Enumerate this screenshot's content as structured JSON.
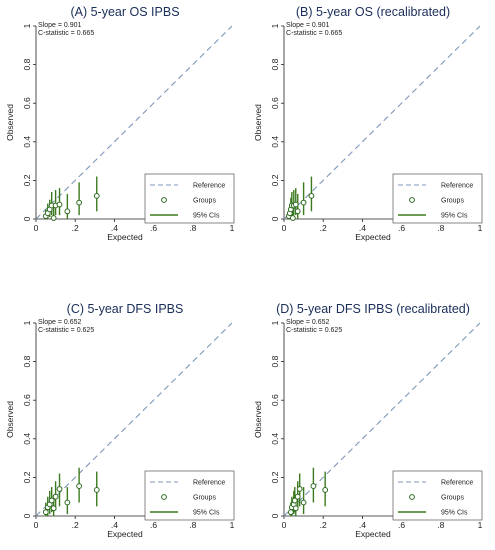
{
  "colors": {
    "reference": "#7d97b8",
    "groups": "#2e6b1f",
    "ci": "#3b7a1e",
    "title": "#1a2e5a"
  },
  "chart_data": [
    {
      "type": "scatter",
      "title": "(A) 5-year OS IPBS",
      "xlabel": "Expected",
      "ylabel": "Observed",
      "xlim": [
        0,
        1
      ],
      "ylim": [
        0,
        1
      ],
      "xticks": [
        "0",
        ".2",
        ".4",
        ".6",
        ".8",
        "1"
      ],
      "yticks": [
        "0",
        "0.2",
        "0.4",
        "0.6",
        "0.8",
        "1"
      ],
      "stats": [
        "Slope = 0.901",
        "C-statistic = 0.665"
      ],
      "legend": [
        "Reference",
        "Groups",
        "95% CIs"
      ],
      "legend_position": "bottom-right",
      "points": [
        {
          "x": 0.05,
          "y": 0.015,
          "lo": 0.0,
          "hi": 0.05
        },
        {
          "x": 0.06,
          "y": 0.03,
          "lo": 0.0,
          "hi": 0.08
        },
        {
          "x": 0.07,
          "y": 0.05,
          "lo": 0.01,
          "hi": 0.1
        },
        {
          "x": 0.08,
          "y": 0.07,
          "lo": 0.02,
          "hi": 0.14
        },
        {
          "x": 0.09,
          "y": 0.005,
          "lo": 0.0,
          "hi": 0.07
        },
        {
          "x": 0.1,
          "y": 0.07,
          "lo": 0.02,
          "hi": 0.15
        },
        {
          "x": 0.12,
          "y": 0.075,
          "lo": 0.02,
          "hi": 0.16
        },
        {
          "x": 0.16,
          "y": 0.04,
          "lo": 0.0,
          "hi": 0.13
        },
        {
          "x": 0.22,
          "y": 0.085,
          "lo": 0.02,
          "hi": 0.19
        },
        {
          "x": 0.31,
          "y": 0.12,
          "lo": 0.04,
          "hi": 0.22
        }
      ]
    },
    {
      "type": "scatter",
      "title": "(B) 5-year OS (recalibrated)",
      "xlabel": "Expected",
      "ylabel": "Observed",
      "xlim": [
        0,
        1
      ],
      "ylim": [
        0,
        1
      ],
      "xticks": [
        "0",
        ".2",
        ".4",
        ".6",
        ".8",
        "1"
      ],
      "yticks": [
        "0",
        "0.2",
        "0.4",
        "0.6",
        "0.8",
        "1"
      ],
      "stats": [
        "Slope = 0.901",
        "C-statistic = 0.665"
      ],
      "legend": [
        "Reference",
        "Groups",
        "95% CIs"
      ],
      "legend_position": "bottom-right",
      "points": [
        {
          "x": 0.025,
          "y": 0.015,
          "lo": 0.0,
          "hi": 0.05
        },
        {
          "x": 0.03,
          "y": 0.03,
          "lo": 0.0,
          "hi": 0.08
        },
        {
          "x": 0.035,
          "y": 0.05,
          "lo": 0.01,
          "hi": 0.11
        },
        {
          "x": 0.04,
          "y": 0.07,
          "lo": 0.02,
          "hi": 0.14
        },
        {
          "x": 0.045,
          "y": 0.005,
          "lo": 0.0,
          "hi": 0.07
        },
        {
          "x": 0.05,
          "y": 0.07,
          "lo": 0.02,
          "hi": 0.15
        },
        {
          "x": 0.06,
          "y": 0.075,
          "lo": 0.02,
          "hi": 0.16
        },
        {
          "x": 0.07,
          "y": 0.04,
          "lo": 0.0,
          "hi": 0.13
        },
        {
          "x": 0.1,
          "y": 0.085,
          "lo": 0.02,
          "hi": 0.19
        },
        {
          "x": 0.14,
          "y": 0.12,
          "lo": 0.04,
          "hi": 0.22
        }
      ]
    },
    {
      "type": "scatter",
      "title": "(C) 5-year DFS IPBS",
      "xlabel": "Expected",
      "ylabel": "Observed",
      "xlim": [
        0,
        1
      ],
      "ylim": [
        0,
        1
      ],
      "xticks": [
        "0",
        ".2",
        ".4",
        ".6",
        ".8",
        "1"
      ],
      "yticks": [
        "0",
        "0.2",
        "0.4",
        "0.6",
        "0.8",
        "1"
      ],
      "stats": [
        "Slope = 0.652",
        "C-statistic = 0.625"
      ],
      "legend": [
        "Reference",
        "Groups",
        "95% CIs"
      ],
      "legend_position": "bottom-right",
      "points": [
        {
          "x": 0.05,
          "y": 0.02,
          "lo": 0.0,
          "hi": 0.07
        },
        {
          "x": 0.06,
          "y": 0.045,
          "lo": 0.0,
          "hi": 0.1
        },
        {
          "x": 0.07,
          "y": 0.06,
          "lo": 0.01,
          "hi": 0.13
        },
        {
          "x": 0.08,
          "y": 0.08,
          "lo": 0.02,
          "hi": 0.15
        },
        {
          "x": 0.09,
          "y": 0.04,
          "lo": 0.0,
          "hi": 0.11
        },
        {
          "x": 0.1,
          "y": 0.1,
          "lo": 0.03,
          "hi": 0.18
        },
        {
          "x": 0.12,
          "y": 0.14,
          "lo": 0.05,
          "hi": 0.22
        },
        {
          "x": 0.16,
          "y": 0.07,
          "lo": 0.01,
          "hi": 0.15
        },
        {
          "x": 0.22,
          "y": 0.155,
          "lo": 0.07,
          "hi": 0.25
        },
        {
          "x": 0.31,
          "y": 0.135,
          "lo": 0.05,
          "hi": 0.23
        }
      ]
    },
    {
      "type": "scatter",
      "title": "(D) 5-year DFS IPBS (recalibrated)",
      "xlabel": "Expected",
      "ylabel": "Observed",
      "xlim": [
        0,
        1
      ],
      "ylim": [
        0,
        1
      ],
      "xticks": [
        "0",
        ".2",
        ".4",
        ".6",
        ".8",
        "1"
      ],
      "yticks": [
        "0",
        "0.2",
        "0.4",
        "0.6",
        "0.8",
        "1"
      ],
      "stats": [
        "Slope = 0.652",
        "C-statistic = 0.625"
      ],
      "legend": [
        "Reference",
        "Groups",
        "95% CIs"
      ],
      "legend_position": "bottom-right",
      "points": [
        {
          "x": 0.035,
          "y": 0.02,
          "lo": 0.0,
          "hi": 0.07
        },
        {
          "x": 0.04,
          "y": 0.045,
          "lo": 0.0,
          "hi": 0.1
        },
        {
          "x": 0.05,
          "y": 0.06,
          "lo": 0.01,
          "hi": 0.13
        },
        {
          "x": 0.055,
          "y": 0.08,
          "lo": 0.02,
          "hi": 0.15
        },
        {
          "x": 0.06,
          "y": 0.04,
          "lo": 0.0,
          "hi": 0.11
        },
        {
          "x": 0.07,
          "y": 0.1,
          "lo": 0.03,
          "hi": 0.18
        },
        {
          "x": 0.08,
          "y": 0.14,
          "lo": 0.05,
          "hi": 0.22
        },
        {
          "x": 0.1,
          "y": 0.07,
          "lo": 0.01,
          "hi": 0.15
        },
        {
          "x": 0.15,
          "y": 0.155,
          "lo": 0.07,
          "hi": 0.25
        },
        {
          "x": 0.21,
          "y": 0.135,
          "lo": 0.05,
          "hi": 0.23
        }
      ]
    }
  ]
}
